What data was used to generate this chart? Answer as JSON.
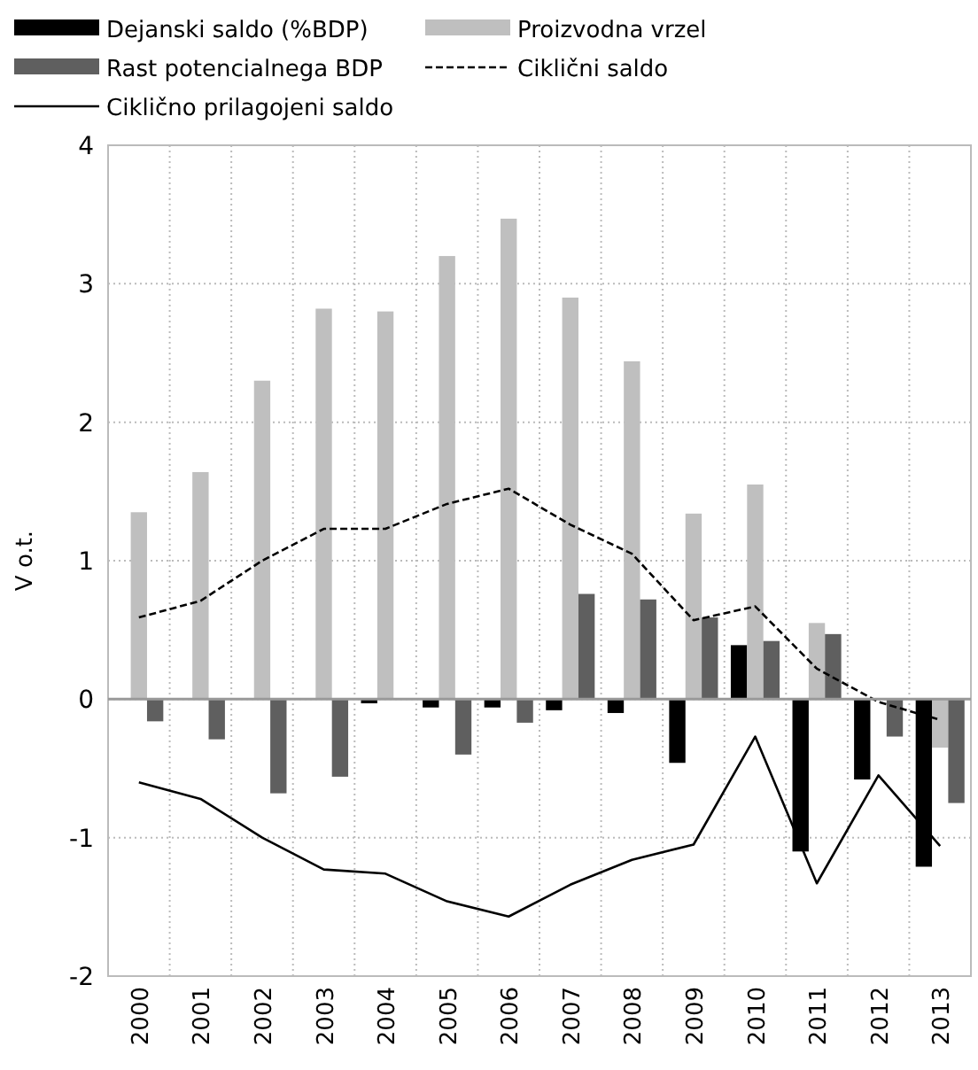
{
  "chart_data": {
    "type": "bar",
    "ylabel": "V o.t.",
    "categories": [
      "2000",
      "2001",
      "2002",
      "2003",
      "2004",
      "2005",
      "2006",
      "2007",
      "2008",
      "2009",
      "2010",
      "2011",
      "2012",
      "2013"
    ],
    "series": [
      {
        "name": "Dejanski saldo (%BDP)",
        "color": "#000000",
        "values": [
          null,
          null,
          null,
          null,
          -0.03,
          -0.06,
          -0.06,
          -0.08,
          -0.1,
          -0.46,
          0.39,
          -1.1,
          -0.58,
          -1.21
        ]
      },
      {
        "name": "Proizvodna vrzel",
        "color": "#bfbfbf",
        "values": [
          1.35,
          1.64,
          2.3,
          2.82,
          2.8,
          3.2,
          3.47,
          2.9,
          2.44,
          1.34,
          1.55,
          0.55,
          null,
          -0.35
        ]
      },
      {
        "name": "Rast potencialnega BDP",
        "color": "#5f5f5f",
        "values": [
          -0.16,
          -0.29,
          -0.68,
          -0.56,
          null,
          -0.4,
          -0.17,
          0.76,
          0.72,
          0.59,
          0.42,
          0.47,
          -0.27,
          -0.75
        ]
      },
      {
        "name": "Ciklični saldo",
        "type": "line",
        "line_style": "dashed",
        "color": "#000000",
        "values": [
          0.59,
          0.71,
          1.0,
          1.23,
          1.23,
          1.41,
          1.52,
          1.26,
          1.05,
          0.57,
          0.67,
          0.22,
          -0.02,
          -0.15
        ]
      },
      {
        "name": "Ciklično prilagojeni saldo",
        "type": "line",
        "line_style": "solid",
        "color": "#000000",
        "values": [
          -0.6,
          -0.72,
          -1.0,
          -1.23,
          -1.26,
          -1.46,
          -1.57,
          -1.34,
          -1.16,
          -1.05,
          -0.27,
          -1.33,
          -0.55,
          -1.06
        ]
      }
    ],
    "ylim": [
      -2,
      4
    ],
    "yticks": [
      {
        "value": -2,
        "label": "-2"
      },
      {
        "value": -1,
        "label": "-1"
      },
      0,
      1,
      2,
      3,
      4
    ],
    "grid": true,
    "legend": "top"
  }
}
